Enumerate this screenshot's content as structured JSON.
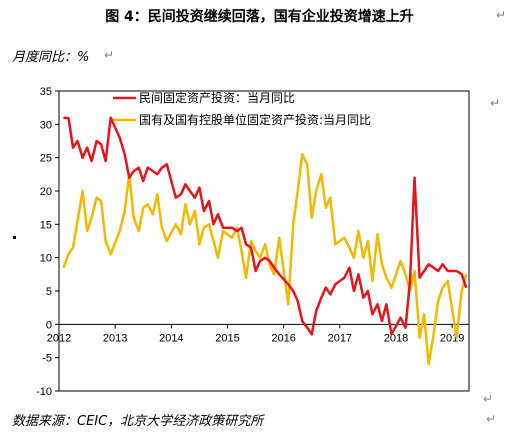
{
  "figure": {
    "title": "图 4：民间投资继续回落，国有企业投资增速上升",
    "unit": "月度同比：%",
    "source": "数据来源：CEIC，北京大学经济政策研究所",
    "return_mark": "↵"
  },
  "chart_data": {
    "type": "line",
    "ylim": [
      -10,
      35
    ],
    "yticks": [
      -10,
      -5,
      0,
      5,
      10,
      15,
      20,
      25,
      30,
      35
    ],
    "x_range": [
      2012.0,
      2019.3
    ],
    "xticks": [
      {
        "label": "2012",
        "x": 2012
      },
      {
        "label": "2013",
        "x": 2013
      },
      {
        "label": "2014",
        "x": 2014
      },
      {
        "label": "2015",
        "x": 2015
      },
      {
        "label": "2016",
        "x": 2016
      },
      {
        "label": "2017",
        "x": 2017
      },
      {
        "label": "2018",
        "x": 2018
      },
      {
        "label": "2019",
        "x": 2019
      }
    ],
    "grid": false,
    "legend_position": "top",
    "series": [
      {
        "name": "民间固定资产投资：当月同比",
        "color": "#e8141b",
        "points": [
          [
            2012.08,
            31.0
          ],
          [
            2012.17,
            30.9
          ],
          [
            2012.25,
            26.5
          ],
          [
            2012.33,
            27.5
          ],
          [
            2012.42,
            25.0
          ],
          [
            2012.5,
            26.5
          ],
          [
            2012.58,
            24.5
          ],
          [
            2012.67,
            27.5
          ],
          [
            2012.75,
            27.0
          ],
          [
            2012.83,
            24.5
          ],
          [
            2012.92,
            31.0
          ],
          [
            2013.08,
            28.0
          ],
          [
            2013.17,
            25.5
          ],
          [
            2013.25,
            22.0
          ],
          [
            2013.33,
            23.0
          ],
          [
            2013.42,
            23.5
          ],
          [
            2013.5,
            21.5
          ],
          [
            2013.58,
            23.5
          ],
          [
            2013.67,
            23.0
          ],
          [
            2013.75,
            22.5
          ],
          [
            2013.83,
            23.5
          ],
          [
            2013.92,
            24.0
          ],
          [
            2014.08,
            19.0
          ],
          [
            2014.17,
            19.5
          ],
          [
            2014.25,
            21.0
          ],
          [
            2014.33,
            20.0
          ],
          [
            2014.42,
            19.0
          ],
          [
            2014.5,
            20.5
          ],
          [
            2014.58,
            17.0
          ],
          [
            2014.67,
            18.5
          ],
          [
            2014.75,
            15.0
          ],
          [
            2014.83,
            16.5
          ],
          [
            2014.92,
            14.5
          ],
          [
            2015.08,
            14.5
          ],
          [
            2015.17,
            14.0
          ],
          [
            2015.25,
            14.5
          ],
          [
            2015.33,
            12.0
          ],
          [
            2015.42,
            11.5
          ],
          [
            2015.5,
            8.0
          ],
          [
            2015.58,
            9.5
          ],
          [
            2015.67,
            10.0
          ],
          [
            2015.75,
            9.5
          ],
          [
            2015.83,
            8.5
          ],
          [
            2015.92,
            7.5
          ],
          [
            2016.08,
            6.0
          ],
          [
            2016.17,
            5.0
          ],
          [
            2016.25,
            3.5
          ],
          [
            2016.33,
            0.5
          ],
          [
            2016.42,
            -0.5
          ],
          [
            2016.5,
            -1.5
          ],
          [
            2016.58,
            2.0
          ],
          [
            2016.67,
            4.0
          ],
          [
            2016.75,
            5.5
          ],
          [
            2016.83,
            4.5
          ],
          [
            2016.92,
            6.0
          ],
          [
            2017.08,
            7.0
          ],
          [
            2017.17,
            8.5
          ],
          [
            2017.25,
            5.0
          ],
          [
            2017.33,
            7.5
          ],
          [
            2017.42,
            4.0
          ],
          [
            2017.5,
            5.0
          ],
          [
            2017.58,
            1.5
          ],
          [
            2017.67,
            3.0
          ],
          [
            2017.75,
            0.5
          ],
          [
            2017.83,
            3.0
          ],
          [
            2017.92,
            -1.5
          ],
          [
            2018.08,
            1.0
          ],
          [
            2018.17,
            -0.5
          ],
          [
            2018.25,
            6.5
          ],
          [
            2018.33,
            22.0
          ],
          [
            2018.42,
            7.0
          ],
          [
            2018.5,
            8.0
          ],
          [
            2018.58,
            9.0
          ],
          [
            2018.67,
            8.5
          ],
          [
            2018.75,
            8.0
          ],
          [
            2018.83,
            9.0
          ],
          [
            2018.92,
            8.0
          ],
          [
            2019.08,
            8.0
          ],
          [
            2019.17,
            7.5
          ],
          [
            2019.25,
            5.5
          ]
        ]
      },
      {
        "name": "国有及国有控股单位固定资产投资:当月同比",
        "color": "#f5b800",
        "points": [
          [
            2012.08,
            8.5
          ],
          [
            2012.17,
            10.5
          ],
          [
            2012.25,
            11.5
          ],
          [
            2012.33,
            15.5
          ],
          [
            2012.42,
            20.0
          ],
          [
            2012.5,
            14.0
          ],
          [
            2012.58,
            16.0
          ],
          [
            2012.67,
            19.0
          ],
          [
            2012.75,
            18.5
          ],
          [
            2012.83,
            12.5
          ],
          [
            2012.92,
            10.5
          ],
          [
            2013.08,
            14.0
          ],
          [
            2013.17,
            17.0
          ],
          [
            2013.25,
            22.5
          ],
          [
            2013.33,
            16.0
          ],
          [
            2013.42,
            14.0
          ],
          [
            2013.5,
            17.5
          ],
          [
            2013.58,
            18.0
          ],
          [
            2013.67,
            16.5
          ],
          [
            2013.75,
            19.5
          ],
          [
            2013.83,
            14.5
          ],
          [
            2013.92,
            12.5
          ],
          [
            2014.08,
            15.0
          ],
          [
            2014.17,
            13.5
          ],
          [
            2014.25,
            18.0
          ],
          [
            2014.33,
            15.0
          ],
          [
            2014.42,
            17.0
          ],
          [
            2014.5,
            12.0
          ],
          [
            2014.58,
            14.5
          ],
          [
            2014.67,
            15.0
          ],
          [
            2014.75,
            12.5
          ],
          [
            2014.83,
            10.0
          ],
          [
            2014.92,
            14.0
          ],
          [
            2015.08,
            13.0
          ],
          [
            2015.17,
            14.5
          ],
          [
            2015.25,
            11.0
          ],
          [
            2015.33,
            7.0
          ],
          [
            2015.42,
            12.5
          ],
          [
            2015.5,
            11.0
          ],
          [
            2015.58,
            10.0
          ],
          [
            2015.67,
            12.0
          ],
          [
            2015.75,
            9.0
          ],
          [
            2015.83,
            7.5
          ],
          [
            2015.92,
            13.0
          ],
          [
            2016.08,
            3.0
          ],
          [
            2016.17,
            15.0
          ],
          [
            2016.25,
            20.0
          ],
          [
            2016.33,
            25.5
          ],
          [
            2016.42,
            24.0
          ],
          [
            2016.5,
            16.0
          ],
          [
            2016.58,
            20.0
          ],
          [
            2016.67,
            22.5
          ],
          [
            2016.75,
            17.5
          ],
          [
            2016.83,
            19.0
          ],
          [
            2016.92,
            12.0
          ],
          [
            2017.08,
            13.0
          ],
          [
            2017.17,
            11.5
          ],
          [
            2017.25,
            10.0
          ],
          [
            2017.33,
            14.0
          ],
          [
            2017.42,
            10.0
          ],
          [
            2017.5,
            12.5
          ],
          [
            2017.58,
            6.5
          ],
          [
            2017.67,
            13.5
          ],
          [
            2017.75,
            9.0
          ],
          [
            2017.83,
            7.0
          ],
          [
            2017.92,
            5.5
          ],
          [
            2018.08,
            9.5
          ],
          [
            2018.17,
            7.5
          ],
          [
            2018.25,
            5.0
          ],
          [
            2018.33,
            8.0
          ],
          [
            2018.42,
            -2.0
          ],
          [
            2018.5,
            1.5
          ],
          [
            2018.58,
            -6.0
          ],
          [
            2018.67,
            -1.5
          ],
          [
            2018.75,
            3.5
          ],
          [
            2018.83,
            5.5
          ],
          [
            2018.92,
            6.5
          ],
          [
            2019.08,
            -2.0
          ],
          [
            2019.17,
            5.0
          ],
          [
            2019.25,
            7.5
          ]
        ]
      }
    ]
  }
}
